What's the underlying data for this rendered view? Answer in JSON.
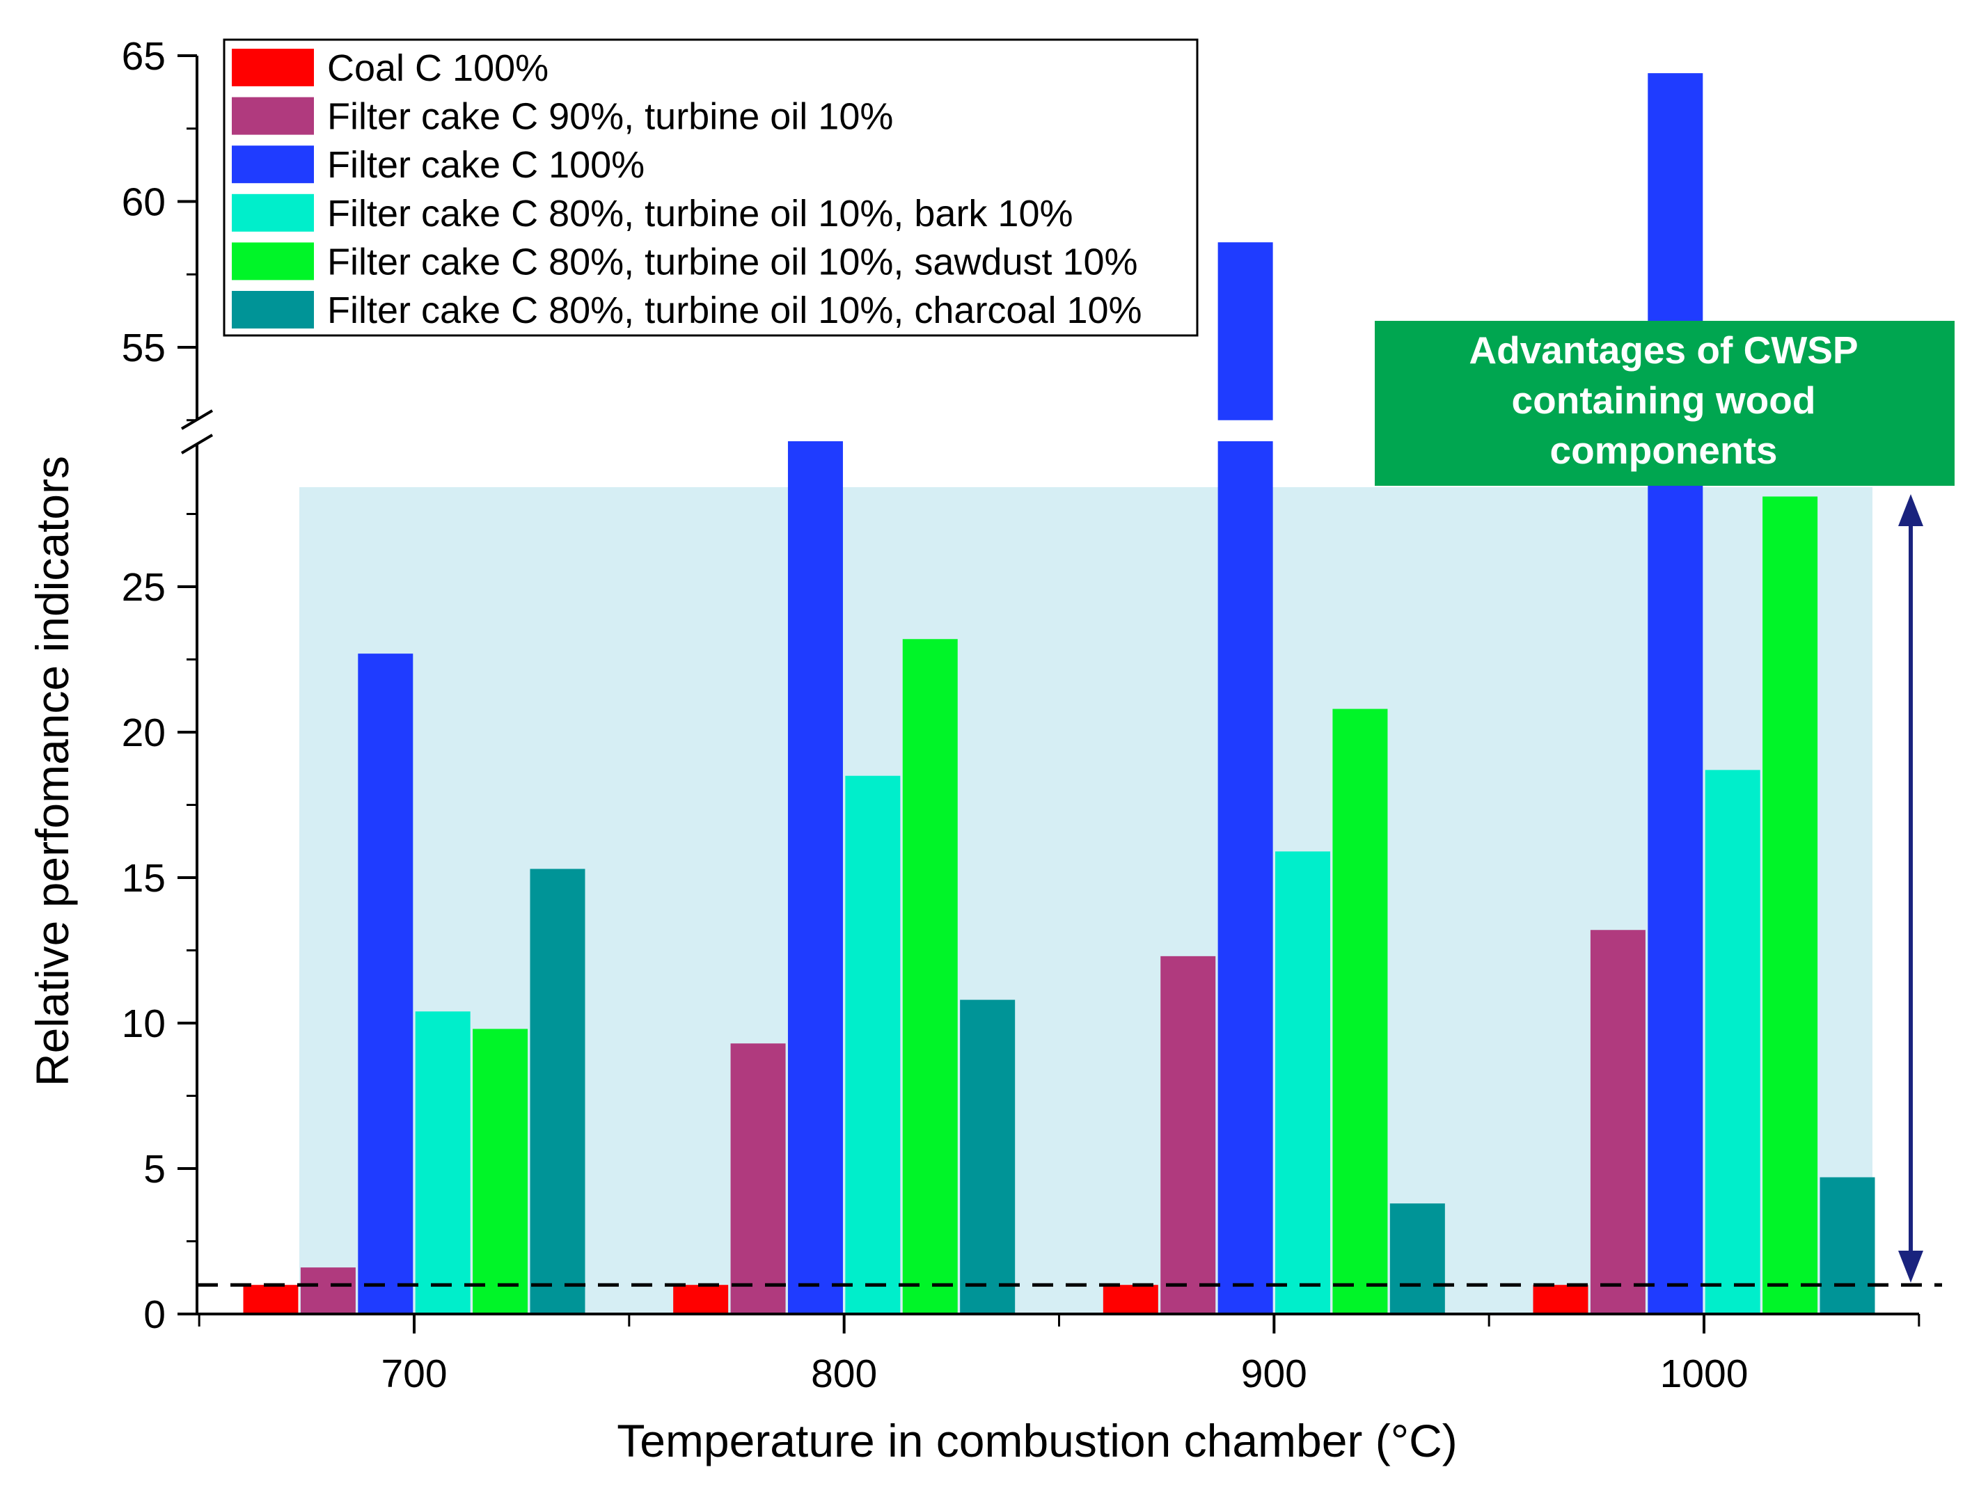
{
  "chart_data": {
    "type": "bar",
    "categories": [
      "700",
      "800",
      "900",
      "1000"
    ],
    "xlabel": "Temperature in combustion chamber  (°C)",
    "ylabel": "Relative perfomance indicators",
    "y_axis": {
      "broken": true,
      "lower_range": [
        0,
        30
      ],
      "upper_range": [
        52.5,
        65
      ],
      "lower_ticks": [
        "0",
        "5",
        "10",
        "15",
        "20",
        "25"
      ],
      "upper_ticks": [
        "55",
        "60",
        "65"
      ]
    },
    "reference_line": {
      "y": 1,
      "style": "dashed"
    },
    "legend_position": "top-left",
    "series": [
      {
        "name": "Coal C 100%",
        "color": "#ff0000",
        "values": [
          1,
          1,
          1,
          1
        ]
      },
      {
        "name": "Filter cake C 90%, turbine oil 10%",
        "color": "#b03a7e",
        "values": [
          1.6,
          9.3,
          12.3,
          13.2
        ]
      },
      {
        "name": "Filter cake C 100%",
        "color": "#1f3cff",
        "values": [
          22.7,
          30,
          58.6,
          64.4
        ]
      },
      {
        "name": "Filter cake C 80%, turbine oil 10%, bark 10%",
        "color": "#00eecb",
        "values": [
          10.4,
          18.5,
          15.9,
          18.7
        ]
      },
      {
        "name": "Filter cake C 80%, turbine oil 10%, sawdust 10%",
        "color": "#00f528",
        "values": [
          9.8,
          23.2,
          20.8,
          28.1
        ]
      },
      {
        "name": "Filter cake C 80%, turbine oil 10%, charcoal 10%",
        "color": "#009497",
        "values": [
          15.3,
          10.8,
          3.8,
          4.7
        ]
      }
    ],
    "annotation": {
      "lines": [
        "Advantages of CWSP",
        "containing  wood",
        "components"
      ],
      "box_color": "#00a650",
      "region_color": "#d6eef4",
      "arrow_color": "#1a237e"
    }
  }
}
